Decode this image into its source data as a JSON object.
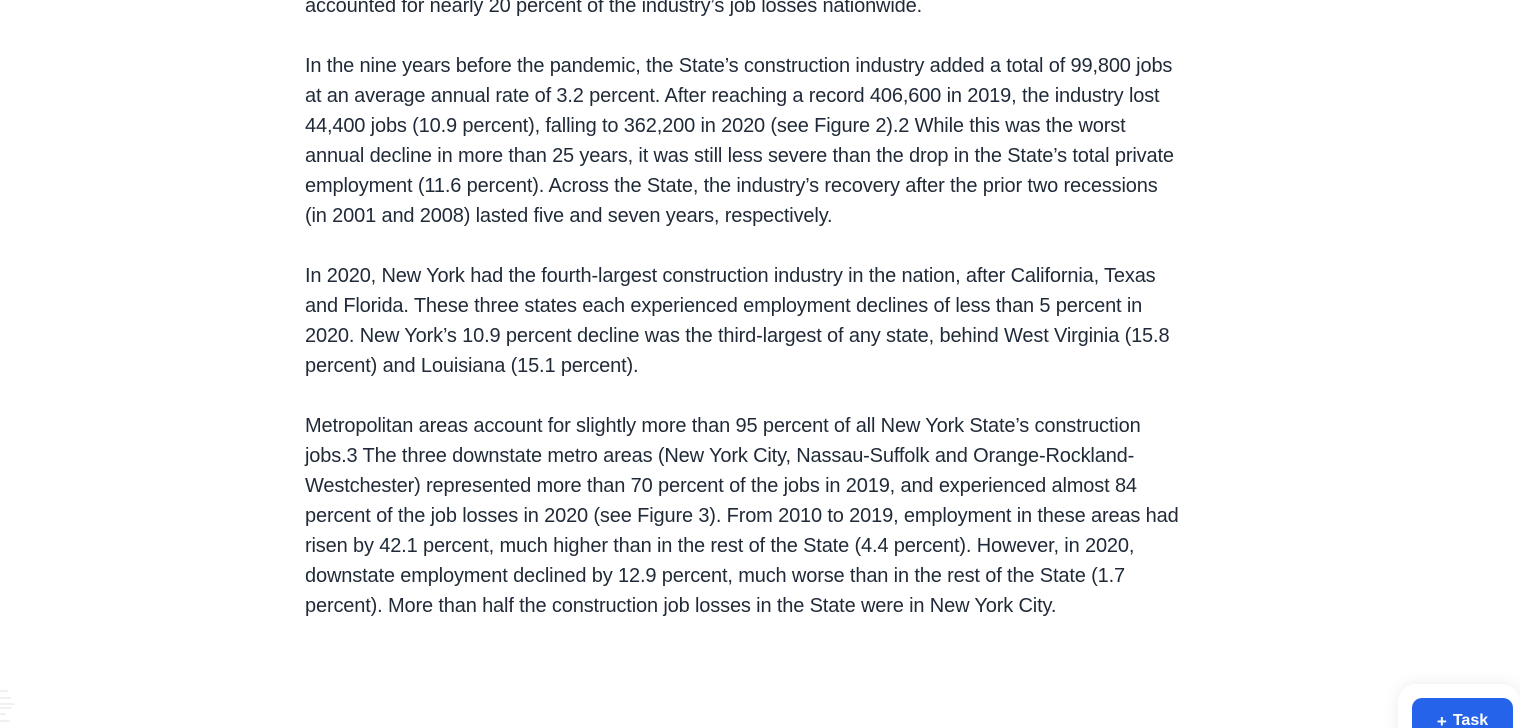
{
  "page": {
    "background": "#ffffff",
    "text_color": "#1f2937"
  },
  "document": {
    "paragraphs": [
      {
        "text": "accounted for nearly 20 percent of the industry’s job losses nationwide."
      },
      {
        "text": "In the nine years before the pandemic, the State’s construction industry added a total of 99,800 jobs at an average annual rate of 3.2 percent. After reaching a record 406,600 in 2019, the industry lost 44,400 jobs (10.9 percent), falling to 362,200 in 2020 (see Figure 2).2 While this was the worst annual decline in more than 25 years, it was still less severe than the drop in the State’s total private employment (11.6 percent). Across the State, the industry’s recovery after the prior two recessions (in 2001 and 2008) lasted five and seven years, respectively."
      },
      {
        "text": "In 2020, New York had the fourth-largest construction industry in the nation, after California, Texas and Florida. These three states each experienced employment declines of less than 5 percent in 2020. New York’s 10.9 percent decline was the third-largest of any state, behind West Virginia (15.8 percent) and Louisiana (15.1 percent)."
      },
      {
        "text": "Metropolitan areas account for slightly more than 95 percent of all New York State’s construction jobs.3 The three downstate metro areas (New York City, Nassau-Suffolk and Orange-Rockland-Westchester) represented more than 70 percent of the jobs in 2019, and experienced almost 84 percent of the job losses in 2020 (see Figure 3). From 2010 to 2019, employment in these areas had risen by 42.1 percent, much higher than in the rest of the State (4.4 percent). However, in 2020, downstate employment declined by 12.9 percent, much worse than in the rest of the State (1.7 percent). More than half the construction job losses in the State were in New York City."
      }
    ]
  },
  "task_button": {
    "icon": "+",
    "label": "Task",
    "color": "#2563eb",
    "text_color": "#ffffff"
  }
}
